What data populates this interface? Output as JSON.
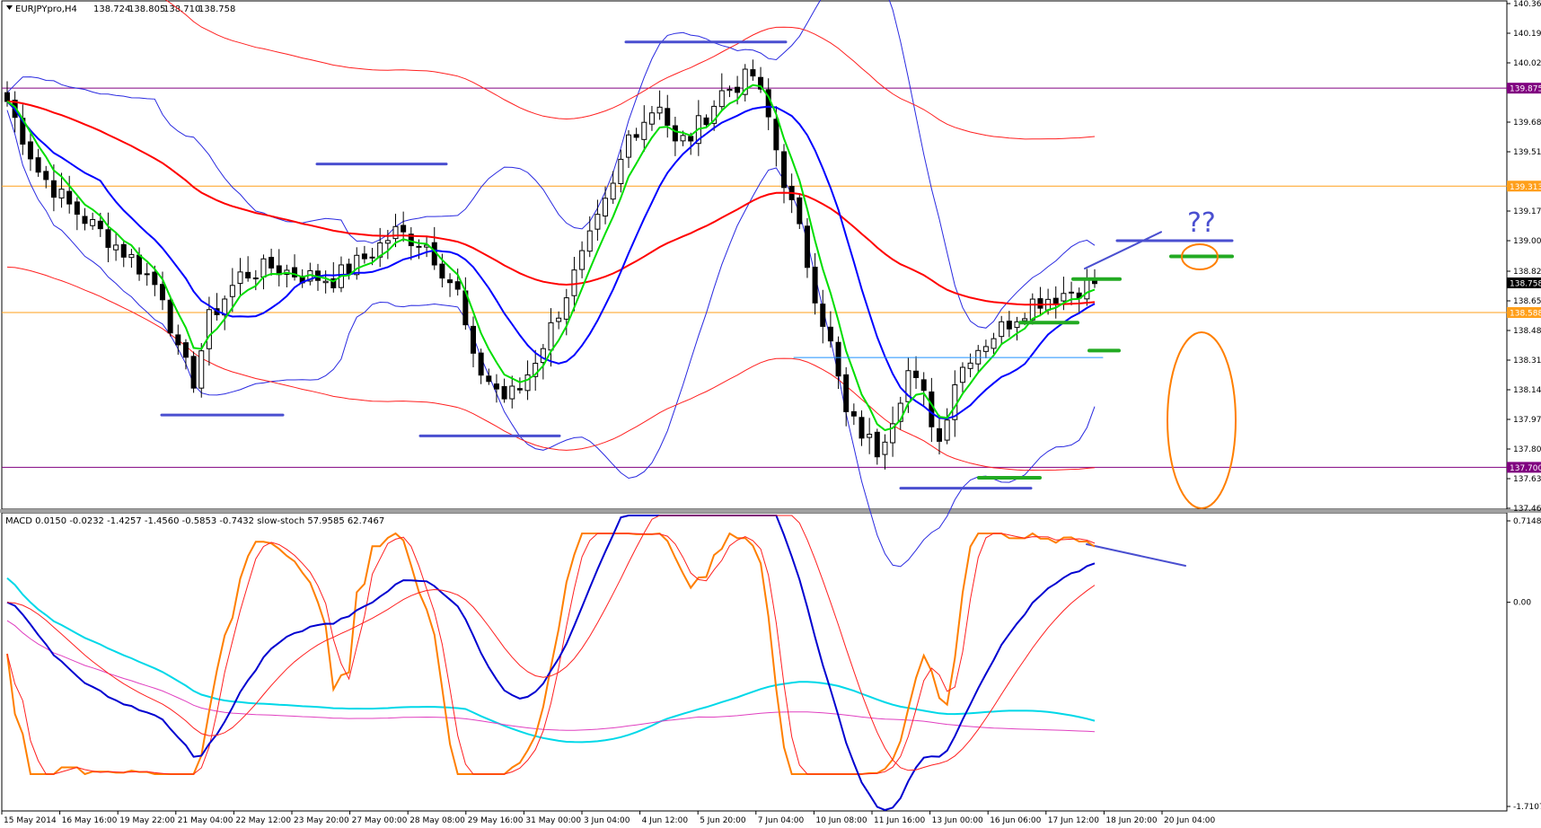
{
  "chart_data": [
    {
      "type": "candlestick",
      "title": "EURJPYpro,H4",
      "ohlc_readout": [
        "138.724",
        "138.805",
        "138.710",
        "138.758"
      ],
      "ylim": [
        137.465,
        140.36
      ],
      "y_ticks": [
        "140.360",
        "140.190",
        "140.020",
        "139.680",
        "139.510",
        "139.170",
        "139.000",
        "138.825",
        "138.655",
        "138.485",
        "138.315",
        "138.145",
        "137.975",
        "137.805",
        "137.635",
        "137.465"
      ],
      "x_ticks": [
        "15 May 2014",
        "16 May 16:00",
        "19 May 22:00",
        "21 May 04:00",
        "22 May 12:00",
        "23 May 20:00",
        "27 May 00:00",
        "28 May 08:00",
        "29 May 16:00",
        "31 May 00:00",
        "3 Jun 04:00",
        "4 Jun 12:00",
        "5 Jun 20:00",
        "7 Jun 04:00",
        "10 Jun 08:00",
        "11 Jun 16:00",
        "13 Jun 00:00",
        "16 Jun 06:00",
        "17 Jun 12:00",
        "18 Jun 20:00",
        "20 Jun 04:00"
      ],
      "horizontal_levels": [
        {
          "value": 139.875,
          "label": "139.875",
          "color": "#800080"
        },
        {
          "value": 139.313,
          "label": "139.313",
          "color": "#ff9f1a"
        },
        {
          "value": 138.588,
          "label": "138.588",
          "color": "#ff9f1a"
        },
        {
          "value": 137.7,
          "label": "137.700",
          "color": "#800080"
        }
      ],
      "current_price": {
        "value": 138.758,
        "label": "138.758"
      },
      "annotation": "??",
      "price_path": [
        [
          0,
          139.8
        ],
        [
          4,
          139.4
        ],
        [
          8,
          139.2
        ],
        [
          12,
          139.05
        ],
        [
          16,
          138.9
        ],
        [
          20,
          138.7
        ],
        [
          22,
          138.35
        ],
        [
          24,
          138.2
        ],
        [
          26,
          138.55
        ],
        [
          30,
          138.8
        ],
        [
          34,
          138.85
        ],
        [
          38,
          138.8
        ],
        [
          42,
          138.78
        ],
        [
          46,
          138.9
        ],
        [
          50,
          139.05
        ],
        [
          54,
          138.98
        ],
        [
          58,
          138.7
        ],
        [
          60,
          138.3
        ],
        [
          62,
          138.2
        ],
        [
          64,
          138.1
        ],
        [
          66,
          138.15
        ],
        [
          70,
          138.5
        ],
        [
          74,
          138.9
        ],
        [
          78,
          139.3
        ],
        [
          80,
          139.6
        ],
        [
          84,
          139.8
        ],
        [
          86,
          139.55
        ],
        [
          88,
          139.6
        ],
        [
          92,
          139.85
        ],
        [
          96,
          139.95
        ],
        [
          98,
          139.7
        ],
        [
          100,
          139.35
        ],
        [
          102,
          139.05
        ],
        [
          104,
          138.7
        ],
        [
          106,
          138.4
        ],
        [
          108,
          138.0
        ],
        [
          110,
          137.9
        ],
        [
          112,
          137.8
        ],
        [
          114,
          138.0
        ],
        [
          116,
          138.25
        ],
        [
          118,
          138.1
        ],
        [
          120,
          137.85
        ],
        [
          122,
          138.2
        ],
        [
          124,
          138.35
        ],
        [
          128,
          138.5
        ],
        [
          132,
          138.65
        ],
        [
          136,
          138.7
        ],
        [
          140,
          138.76
        ]
      ]
    },
    {
      "type": "line",
      "title": "MACD 0.0150 -0.0232 -1.4257 -1.4560 -0.5853 -0.7432 slow-stoch 57.9585 62.7467",
      "ylim": [
        -1.7107,
        0.7148
      ],
      "y_ticks": [
        "0.7148",
        "0.00",
        "-1.7107"
      ]
    }
  ],
  "colors": {
    "bull": "#ffffff",
    "bear": "#000000",
    "ema_fast": "#00dd00",
    "ma_mid": "#0000ff",
    "ma_slow": "#ff0000",
    "stoch": "#ff7f00",
    "macd_main": "#0000d0",
    "signal_cyan": "#00d8e8",
    "signal_magenta": "#e040c0",
    "annotation_blue": "#4a4fd0",
    "annotation_green": "#22aa22",
    "annotation_orange": "#ff7f00"
  }
}
